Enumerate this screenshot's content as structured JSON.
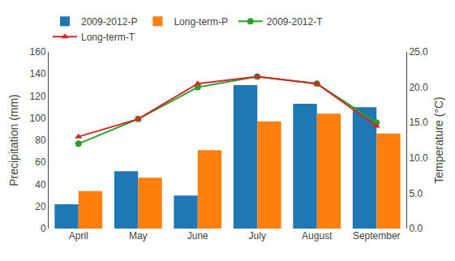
{
  "chart_data": {
    "type": "bar",
    "categories": [
      "April",
      "May",
      "June",
      "July",
      "August",
      "September"
    ],
    "ylabel": "Precipitation (mm)",
    "y2label": "Temperature (°C)",
    "ylim": [
      0,
      160
    ],
    "yticks": [
      0,
      20,
      40,
      60,
      80,
      100,
      120,
      140,
      160
    ],
    "y2lim": [
      0.0,
      25.0
    ],
    "y2ticks": [
      {
        "value": 0.0,
        "label": "0.0"
      },
      {
        "value": 5.0,
        "label": "5.0"
      },
      {
        "value": 10.0,
        "label": "10.0"
      },
      {
        "value": 15.0,
        "label": "15.0"
      },
      {
        "value": 20.0,
        "label": "20.0"
      },
      {
        "value": 25.0,
        "label": "25.0"
      }
    ],
    "grid": false,
    "legend": "top",
    "series": [
      {
        "name": "2009-2012-P",
        "type": "bar",
        "values": [
          22,
          52,
          30,
          130,
          113,
          110
        ]
      },
      {
        "name": "Long-term-P",
        "type": "bar",
        "values": [
          34,
          46,
          71,
          97,
          104,
          86
        ]
      },
      {
        "name": "2009-2012-T",
        "type": "line",
        "axis": "y2",
        "marker": "circle",
        "values": [
          12.0,
          15.5,
          20.0,
          21.5,
          20.5,
          15.0
        ]
      },
      {
        "name": "Long-term-T",
        "type": "line",
        "axis": "y2",
        "marker": "triangle",
        "values": [
          13.0,
          15.5,
          20.5,
          21.5,
          20.5,
          14.5
        ]
      }
    ]
  }
}
